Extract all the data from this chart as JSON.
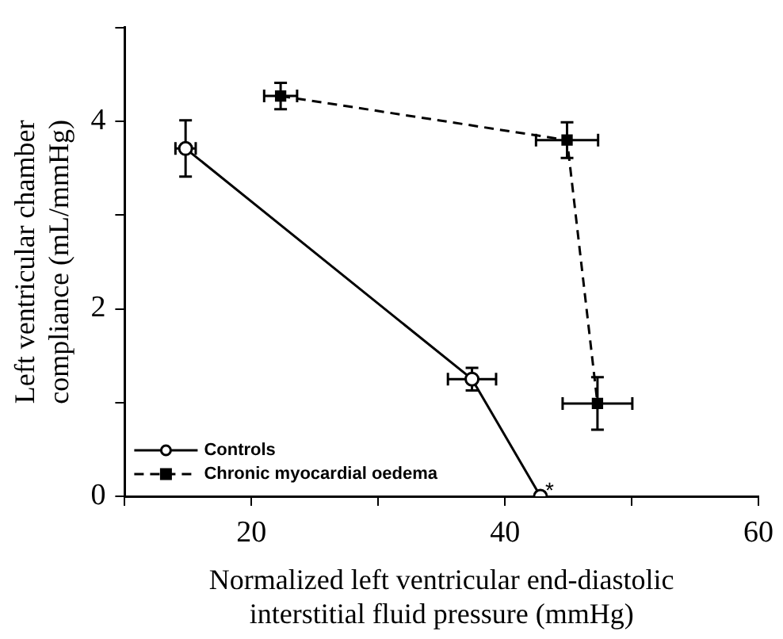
{
  "chart_data": {
    "type": "scatter",
    "xlabel": "Normalized left ventricular end-diastolic interstitial fluid pressure (mmHg)",
    "ylabel": "Left ventricular chamber compliance (mL/mmHg)",
    "xlim": [
      10,
      60
    ],
    "xticks": [
      {
        "value": 10,
        "label": null
      },
      20,
      {
        "value": 30,
        "label": null
      },
      40,
      {
        "value": 50,
        "label": null
      },
      60
    ],
    "ylim": [
      0,
      5
    ],
    "yticks": [
      0,
      {
        "value": 1,
        "label": null
      },
      2,
      {
        "value": 3,
        "label": null
      },
      4,
      {
        "value": 5,
        "label": null
      }
    ],
    "grid": false,
    "legend": "bottom left",
    "series": [
      {
        "name": "Controls",
        "type": "line",
        "color": "#000000",
        "marker": "circle",
        "line_style": "solid",
        "x": [
          14.8,
          37.4,
          42.8
        ],
        "values": [
          3.71,
          1.25,
          0
        ],
        "errors": [
          0.3,
          0.12,
          null
        ],
        "xerrors": [
          0.8,
          1.9,
          null
        ]
      },
      {
        "name": "Chronic myocardial oedema",
        "type": "line",
        "color": "#000000",
        "marker": "square",
        "line_style": "dashed",
        "x": [
          22.3,
          44.9,
          47.3
        ],
        "values": [
          4.27,
          3.8,
          0.99
        ],
        "errors": [
          0.14,
          0.19,
          0.28
        ],
        "xerrors": [
          1.3,
          2.45,
          2.75
        ]
      }
    ],
    "annotations": [
      {
        "text": "*",
        "x": 42.8,
        "y": 0
      }
    ]
  }
}
